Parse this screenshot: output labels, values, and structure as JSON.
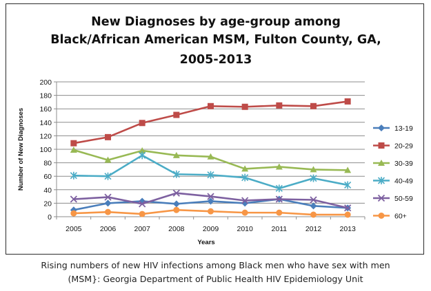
{
  "chart_data": {
    "type": "line",
    "title_lines": [
      "New Diagnoses by age-group among",
      "Black/African American MSM, Fulton County, GA,",
      "2005-2013"
    ],
    "xlabel": "Years",
    "ylabel": "Number of New Diagnoses",
    "ylim": [
      0,
      200
    ],
    "yticks": [
      "0",
      "20",
      "40",
      "60",
      "80",
      "100",
      "120",
      "140",
      "160",
      "180",
      "200"
    ],
    "categories": [
      "2005",
      "2006",
      "2007",
      "2008",
      "2009",
      "2010",
      "2011",
      "2012",
      "2013"
    ],
    "grid": true,
    "legend_position": "right",
    "series": [
      {
        "name": "13-19",
        "color": "#4a7ebb",
        "marker": "diamond",
        "values": [
          10,
          20,
          23,
          19,
          23,
          20,
          26,
          16,
          13
        ]
      },
      {
        "name": "20-29",
        "color": "#be4b48",
        "marker": "square",
        "values": [
          109,
          118,
          139,
          151,
          164,
          163,
          165,
          164,
          171
        ]
      },
      {
        "name": "30-39",
        "color": "#98b954",
        "marker": "triangle",
        "values": [
          99,
          84,
          98,
          91,
          89,
          71,
          74,
          70,
          69
        ]
      },
      {
        "name": "40-49",
        "color": "#4bacc6",
        "marker": "star",
        "values": [
          61,
          60,
          91,
          63,
          62,
          58,
          42,
          57,
          47
        ]
      },
      {
        "name": "50-59",
        "color": "#7d60a0",
        "marker": "x",
        "values": [
          26,
          29,
          19,
          35,
          30,
          24,
          26,
          25,
          13
        ]
      },
      {
        "name": "60+",
        "color": "#f79646",
        "marker": "circle",
        "values": [
          5,
          7,
          4,
          10,
          8,
          6,
          6,
          3,
          3
        ]
      }
    ]
  },
  "caption": {
    "line1": "Rising numbers of new HIV infections among Black men who have sex with men",
    "line2": "(MSM}: Georgia Department of Public Health HIV Epidemiology Unit"
  }
}
